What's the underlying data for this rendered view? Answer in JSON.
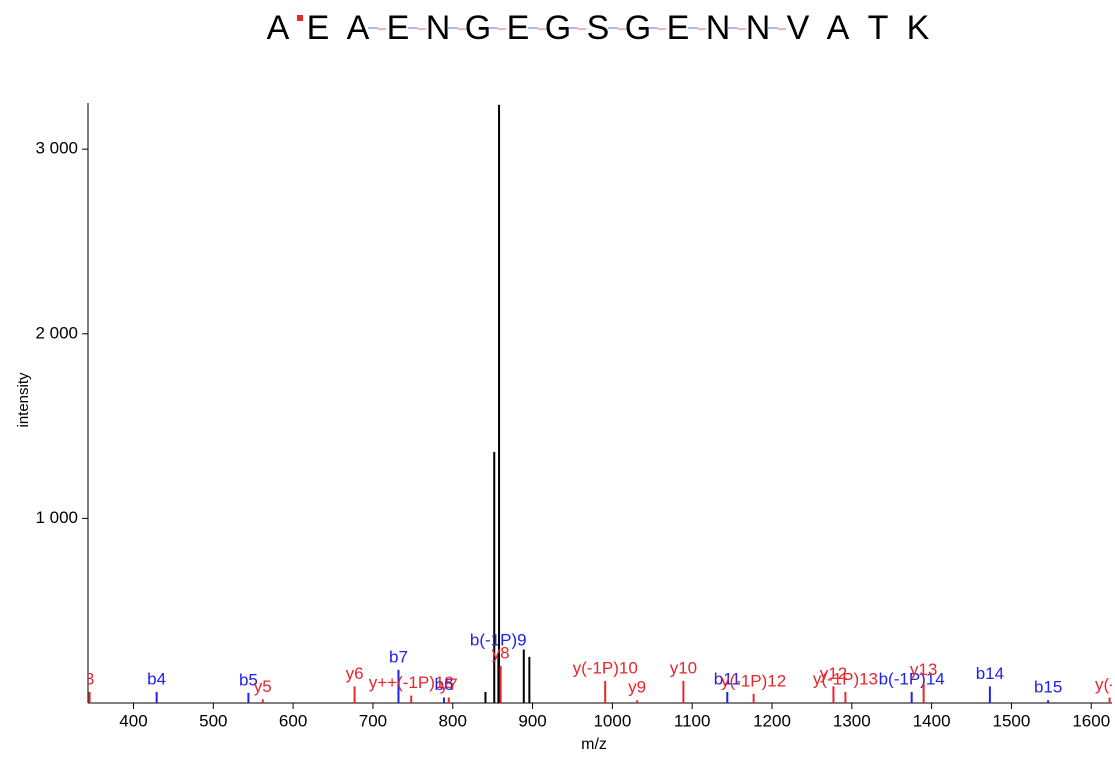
{
  "chart_data": {
    "type": "stem",
    "sequence": [
      "A",
      "E",
      "A",
      "E",
      "N",
      "G",
      "E",
      "G",
      "S",
      "G",
      "E",
      "N",
      "N",
      "V",
      "A",
      "T",
      "K"
    ],
    "xlabel": "m/z",
    "ylabel": "intensity",
    "xlim": [
      343,
      1626
    ],
    "ylim": [
      0,
      3250
    ],
    "xticks": [
      400,
      500,
      600,
      700,
      800,
      900,
      1000,
      1100,
      1200,
      1300,
      1400,
      1500,
      1600
    ],
    "yticks": [
      {
        "value": 1000,
        "label": "1 000"
      },
      {
        "value": 2000,
        "label": "2 000"
      },
      {
        "value": 3000,
        "label": "3 000"
      }
    ],
    "x": [
      345,
      429,
      544,
      562,
      677,
      732,
      748,
      789,
      795,
      841,
      852,
      857,
      858,
      860,
      889,
      896,
      991,
      1031,
      1089,
      1144,
      1177,
      1277,
      1292,
      1375,
      1390,
      1473,
      1546,
      1623
    ],
    "values": [
      60,
      60,
      55,
      20,
      90,
      180,
      40,
      30,
      30,
      60,
      1360,
      270,
      3240,
      200,
      290,
      250,
      120,
      15,
      120,
      60,
      50,
      90,
      60,
      60,
      110,
      90,
      15,
      30
    ],
    "peak_labels": [
      "3",
      "b4",
      "b5",
      "y5",
      "y6",
      "b7",
      "y++(-1P)18",
      "b6",
      "y7",
      null,
      null,
      "b(-1P)9",
      null,
      "y8",
      null,
      null,
      "y(-1P)10",
      "y9",
      "y10",
      "b11",
      "y(-1P)12",
      "y12",
      "y(-1P)13",
      "b(-1P)14",
      "y13",
      "b14",
      "b15",
      "y(-1"
    ],
    "colors": [
      "#e8262b",
      "#2020f0",
      "#2020f0",
      "#e8262b",
      "#e8262b",
      "#2020f0",
      "#e8262b",
      "#2020f0",
      "#e8262b",
      "#000000",
      "#000000",
      "#2020f0",
      "#000000",
      "#e8262b",
      "#000000",
      "#000000",
      "#e8262b",
      "#e8262b",
      "#e8262b",
      "#2020f0",
      "#e8262b",
      "#e8262b",
      "#e8262b",
      "#2020f0",
      "#e8262b",
      "#2020f0",
      "#2020f0",
      "#e8262b"
    ]
  }
}
